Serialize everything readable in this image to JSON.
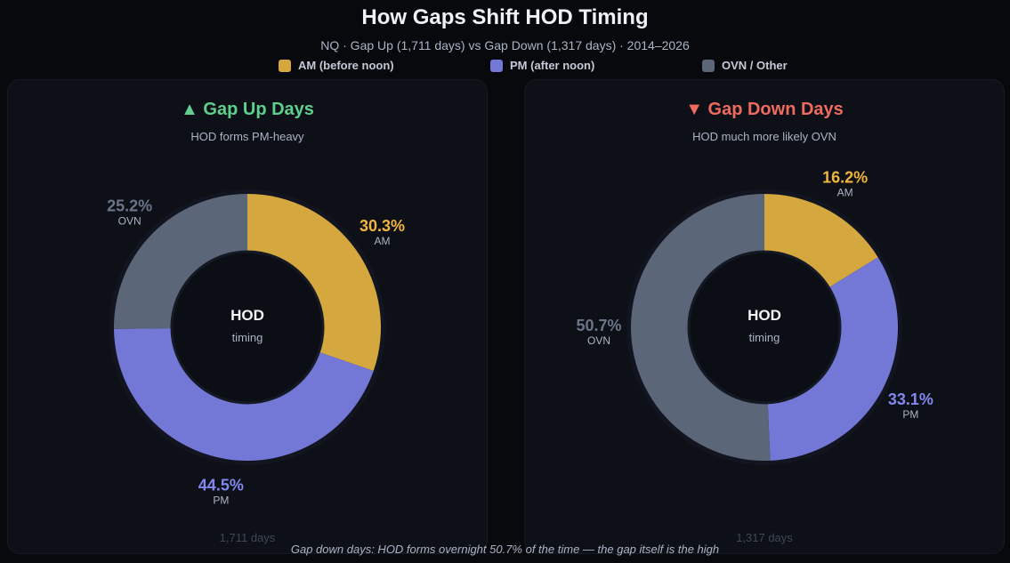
{
  "title": "How Gaps Shift HOD Timing",
  "subtitle": "NQ · Gap Up (1,711 days) vs Gap Down (1,317 days) · 2014–2026",
  "legend": [
    {
      "label": "AM (before noon)",
      "color": "#d4a73f"
    },
    {
      "label": "PM (after noon)",
      "color": "#7378d6"
    },
    {
      "label": "OVN / Other",
      "color": "#5b6678"
    }
  ],
  "footer": "Gap down days: HOD forms overnight 50.7% of the time — the gap itself is the high",
  "chart_data": [
    {
      "type": "pie",
      "title": "▲ Gap Up Days",
      "title_color": "#5fcf8e",
      "subtitle": "HOD forms PM-heavy",
      "center_title": "HOD",
      "center_sub": "timing",
      "days": "1,711 days",
      "slices": [
        {
          "label": "AM",
          "value": 30.3,
          "color": "#d4a73f",
          "label_color": "#f2b640"
        },
        {
          "label": "PM",
          "value": 44.5,
          "color": "#7378d6",
          "label_color": "#8388f0"
        },
        {
          "label": "OVN",
          "value": 25.2,
          "color": "#5b6678",
          "label_color": "#6a7588"
        }
      ]
    },
    {
      "type": "pie",
      "title": "▼ Gap Down Days",
      "title_color": "#ef6b5f",
      "subtitle": "HOD much more likely OVN",
      "center_title": "HOD",
      "center_sub": "timing",
      "days": "1,317 days",
      "slices": [
        {
          "label": "AM",
          "value": 16.2,
          "color": "#d4a73f",
          "label_color": "#f2b640"
        },
        {
          "label": "PM",
          "value": 33.1,
          "color": "#7378d6",
          "label_color": "#8388f0"
        },
        {
          "label": "OVN",
          "value": 50.7,
          "color": "#5b6678",
          "label_color": "#6a7588"
        }
      ]
    }
  ]
}
